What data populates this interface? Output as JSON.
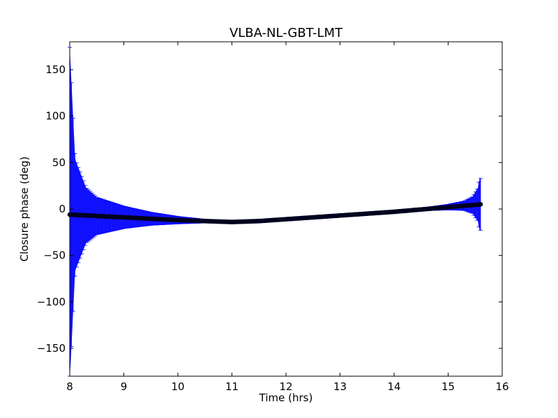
{
  "chart_data": {
    "type": "scatter",
    "title": "VLBA-NL-GBT-LMT",
    "xlabel": "Time (hrs)",
    "ylabel": "Closure phase (deg)",
    "xlim": [
      8,
      16
    ],
    "ylim": [
      -180,
      180
    ],
    "xticks": [
      "8",
      "9",
      "10",
      "11",
      "12",
      "13",
      "14",
      "15",
      "16"
    ],
    "yticks": [
      "−150",
      "−100",
      "−50",
      "0",
      "50",
      "100",
      "150"
    ],
    "grid": false,
    "legend": "none",
    "colors": {
      "errorbar": "#0000ff",
      "marker": "#000020",
      "axes": "#000000"
    },
    "series": [
      {
        "marker": "circle",
        "x_range": [
          8.0,
          15.6
        ],
        "phase_profile": [
          {
            "x": 8.0,
            "y": -6
          },
          {
            "x": 9.0,
            "y": -9
          },
          {
            "x": 10.0,
            "y": -12
          },
          {
            "x": 11.0,
            "y": -14
          },
          {
            "x": 11.5,
            "y": -13
          },
          {
            "x": 12.0,
            "y": -11
          },
          {
            "x": 13.0,
            "y": -7
          },
          {
            "x": 14.0,
            "y": -3
          },
          {
            "x": 15.0,
            "y": 2
          },
          {
            "x": 15.6,
            "y": 5
          }
        ],
        "error_profile": [
          {
            "x": 8.0,
            "y": 180
          },
          {
            "x": 8.1,
            "y": 60
          },
          {
            "x": 8.3,
            "y": 30
          },
          {
            "x": 8.5,
            "y": 20
          },
          {
            "x": 9.0,
            "y": 12
          },
          {
            "x": 9.5,
            "y": 7
          },
          {
            "x": 10.0,
            "y": 4
          },
          {
            "x": 10.5,
            "y": 2
          },
          {
            "x": 11.0,
            "y": 1.5
          },
          {
            "x": 13.0,
            "y": 1.0
          },
          {
            "x": 14.5,
            "y": 1.5
          },
          {
            "x": 15.0,
            "y": 3
          },
          {
            "x": 15.3,
            "y": 5
          },
          {
            "x": 15.45,
            "y": 9
          },
          {
            "x": 15.55,
            "y": 18
          },
          {
            "x": 15.58,
            "y": 28
          }
        ]
      }
    ]
  }
}
